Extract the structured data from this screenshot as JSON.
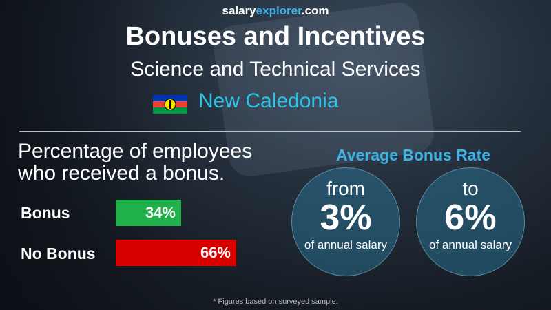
{
  "header": {
    "site_part1": "salary",
    "site_part2": "explorer",
    "site_part3": ".com",
    "title": "Bonuses and Incentives",
    "subtitle": "Science and Technical Services",
    "country": "New Caledonia",
    "flag_icon": "new-caledonia-flag"
  },
  "chart_data": {
    "type": "bar",
    "title": "Percentage of employees who received a bonus.",
    "categories": [
      "Bonus",
      "No Bonus"
    ],
    "values": [
      34,
      66
    ],
    "value_labels": [
      "34%",
      "66%"
    ],
    "colors": [
      "#1fb04b",
      "#d90000"
    ],
    "orientation": "horizontal"
  },
  "bonus_rate": {
    "title": "Average Bonus Rate",
    "from_word": "from",
    "from_value": "3%",
    "to_word": "to",
    "to_value": "6%",
    "unit": "of annual salary"
  },
  "footnote": "* Figures based on surveyed sample."
}
